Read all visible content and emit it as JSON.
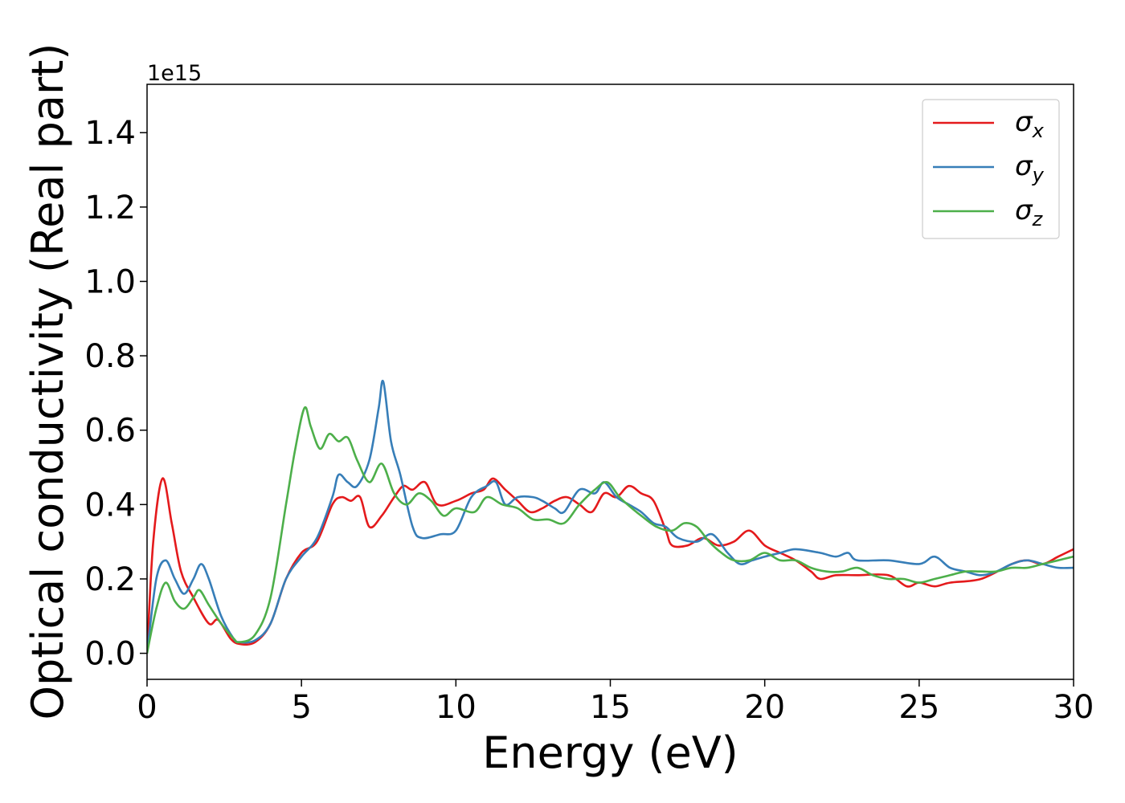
{
  "chart_data": {
    "type": "line",
    "title": "",
    "xlabel": "Energy (eV)",
    "ylabel": "Optical conductivity (Real part)",
    "y_offset_label": "1e15",
    "xlim": [
      0,
      30
    ],
    "ylim": [
      -0.07,
      1.53
    ],
    "x_ticks": [
      0,
      5,
      10,
      15,
      20,
      25,
      30
    ],
    "x_tick_labels": [
      "0",
      "5",
      "10",
      "15",
      "20",
      "25",
      "30"
    ],
    "y_ticks": [
      0.0,
      0.2,
      0.4,
      0.6,
      0.8,
      1.0,
      1.2,
      1.4
    ],
    "y_tick_labels": [
      "0.0",
      "0.2",
      "0.4",
      "0.6",
      "0.8",
      "1.0",
      "1.2",
      "1.4"
    ],
    "grid": false,
    "legend_position": "top-right",
    "series": [
      {
        "name": "σx",
        "symbol": "σ",
        "subscript": "x",
        "color": "#e41a1c",
        "points": [
          [
            0,
            0.0
          ],
          [
            0.2,
            0.3
          ],
          [
            0.5,
            0.47
          ],
          [
            0.8,
            0.35
          ],
          [
            1.1,
            0.22
          ],
          [
            1.5,
            0.15
          ],
          [
            2.0,
            0.08
          ],
          [
            2.3,
            0.09
          ],
          [
            2.7,
            0.04
          ],
          [
            3.0,
            0.025
          ],
          [
            3.5,
            0.03
          ],
          [
            4.0,
            0.08
          ],
          [
            4.5,
            0.2
          ],
          [
            5.0,
            0.27
          ],
          [
            5.5,
            0.3
          ],
          [
            6.0,
            0.4
          ],
          [
            6.3,
            0.42
          ],
          [
            6.6,
            0.41
          ],
          [
            6.9,
            0.42
          ],
          [
            7.2,
            0.34
          ],
          [
            7.6,
            0.37
          ],
          [
            8.0,
            0.42
          ],
          [
            8.3,
            0.45
          ],
          [
            8.6,
            0.44
          ],
          [
            9.0,
            0.46
          ],
          [
            9.4,
            0.4
          ],
          [
            10.0,
            0.41
          ],
          [
            10.5,
            0.43
          ],
          [
            10.9,
            0.44
          ],
          [
            11.2,
            0.47
          ],
          [
            11.6,
            0.44
          ],
          [
            12.0,
            0.41
          ],
          [
            12.4,
            0.38
          ],
          [
            12.8,
            0.39
          ],
          [
            13.2,
            0.41
          ],
          [
            13.6,
            0.42
          ],
          [
            14.0,
            0.4
          ],
          [
            14.4,
            0.38
          ],
          [
            14.8,
            0.43
          ],
          [
            15.2,
            0.42
          ],
          [
            15.6,
            0.45
          ],
          [
            16.0,
            0.43
          ],
          [
            16.4,
            0.41
          ],
          [
            16.8,
            0.33
          ],
          [
            17.0,
            0.29
          ],
          [
            17.5,
            0.29
          ],
          [
            18.0,
            0.31
          ],
          [
            18.5,
            0.29
          ],
          [
            19.0,
            0.3
          ],
          [
            19.5,
            0.33
          ],
          [
            20.0,
            0.29
          ],
          [
            20.5,
            0.27
          ],
          [
            21.0,
            0.25
          ],
          [
            21.5,
            0.22
          ],
          [
            21.8,
            0.2
          ],
          [
            22.3,
            0.21
          ],
          [
            23.0,
            0.21
          ],
          [
            24.0,
            0.21
          ],
          [
            24.6,
            0.18
          ],
          [
            25.0,
            0.19
          ],
          [
            25.5,
            0.18
          ],
          [
            26.0,
            0.19
          ],
          [
            27.0,
            0.2
          ],
          [
            28.0,
            0.24
          ],
          [
            28.5,
            0.25
          ],
          [
            29.0,
            0.24
          ],
          [
            29.5,
            0.26
          ],
          [
            30.0,
            0.28
          ]
        ]
      },
      {
        "name": "σy",
        "symbol": "σ",
        "subscript": "y",
        "color": "#377eb8",
        "points": [
          [
            0,
            0.0
          ],
          [
            0.3,
            0.2
          ],
          [
            0.6,
            0.25
          ],
          [
            0.9,
            0.2
          ],
          [
            1.2,
            0.16
          ],
          [
            1.5,
            0.2
          ],
          [
            1.75,
            0.24
          ],
          [
            2.0,
            0.2
          ],
          [
            2.4,
            0.1
          ],
          [
            2.8,
            0.04
          ],
          [
            3.0,
            0.03
          ],
          [
            3.5,
            0.035
          ],
          [
            4.0,
            0.08
          ],
          [
            4.5,
            0.2
          ],
          [
            5.0,
            0.26
          ],
          [
            5.5,
            0.31
          ],
          [
            6.0,
            0.42
          ],
          [
            6.2,
            0.48
          ],
          [
            6.5,
            0.46
          ],
          [
            6.8,
            0.45
          ],
          [
            7.2,
            0.52
          ],
          [
            7.5,
            0.66
          ],
          [
            7.65,
            0.73
          ],
          [
            7.9,
            0.57
          ],
          [
            8.2,
            0.48
          ],
          [
            8.6,
            0.34
          ],
          [
            8.9,
            0.31
          ],
          [
            9.5,
            0.32
          ],
          [
            10.0,
            0.33
          ],
          [
            10.5,
            0.42
          ],
          [
            11.0,
            0.45
          ],
          [
            11.3,
            0.46
          ],
          [
            11.6,
            0.4
          ],
          [
            12.0,
            0.42
          ],
          [
            12.5,
            0.42
          ],
          [
            12.8,
            0.41
          ],
          [
            13.2,
            0.39
          ],
          [
            13.5,
            0.38
          ],
          [
            14.0,
            0.44
          ],
          [
            14.5,
            0.43
          ],
          [
            14.8,
            0.46
          ],
          [
            15.2,
            0.42
          ],
          [
            15.6,
            0.4
          ],
          [
            16.0,
            0.38
          ],
          [
            16.4,
            0.35
          ],
          [
            16.8,
            0.34
          ],
          [
            17.2,
            0.31
          ],
          [
            17.8,
            0.3
          ],
          [
            18.3,
            0.32
          ],
          [
            18.8,
            0.27
          ],
          [
            19.2,
            0.24
          ],
          [
            19.6,
            0.25
          ],
          [
            20.0,
            0.26
          ],
          [
            20.5,
            0.27
          ],
          [
            21.0,
            0.28
          ],
          [
            21.8,
            0.27
          ],
          [
            22.3,
            0.26
          ],
          [
            22.7,
            0.27
          ],
          [
            23.0,
            0.25
          ],
          [
            24.0,
            0.25
          ],
          [
            25.0,
            0.24
          ],
          [
            25.5,
            0.26
          ],
          [
            26.0,
            0.23
          ],
          [
            26.5,
            0.22
          ],
          [
            27.0,
            0.21
          ],
          [
            27.5,
            0.22
          ],
          [
            28.0,
            0.24
          ],
          [
            28.5,
            0.25
          ],
          [
            29.0,
            0.24
          ],
          [
            29.5,
            0.23
          ],
          [
            30.0,
            0.23
          ]
        ]
      },
      {
        "name": "σz",
        "symbol": "σ",
        "subscript": "z",
        "color": "#4daf4a",
        "points": [
          [
            0,
            0.0
          ],
          [
            0.3,
            0.12
          ],
          [
            0.6,
            0.19
          ],
          [
            0.9,
            0.14
          ],
          [
            1.2,
            0.12
          ],
          [
            1.5,
            0.15
          ],
          [
            1.7,
            0.17
          ],
          [
            2.0,
            0.13
          ],
          [
            2.4,
            0.08
          ],
          [
            2.8,
            0.04
          ],
          [
            3.0,
            0.03
          ],
          [
            3.5,
            0.05
          ],
          [
            4.0,
            0.15
          ],
          [
            4.5,
            0.4
          ],
          [
            4.8,
            0.55
          ],
          [
            5.1,
            0.66
          ],
          [
            5.3,
            0.61
          ],
          [
            5.6,
            0.55
          ],
          [
            5.9,
            0.59
          ],
          [
            6.2,
            0.57
          ],
          [
            6.5,
            0.58
          ],
          [
            6.8,
            0.52
          ],
          [
            7.2,
            0.46
          ],
          [
            7.6,
            0.51
          ],
          [
            8.0,
            0.43
          ],
          [
            8.4,
            0.4
          ],
          [
            8.8,
            0.43
          ],
          [
            9.2,
            0.41
          ],
          [
            9.6,
            0.37
          ],
          [
            10.0,
            0.39
          ],
          [
            10.6,
            0.38
          ],
          [
            11.0,
            0.42
          ],
          [
            11.5,
            0.4
          ],
          [
            12.0,
            0.39
          ],
          [
            12.5,
            0.36
          ],
          [
            13.0,
            0.36
          ],
          [
            13.5,
            0.35
          ],
          [
            14.0,
            0.4
          ],
          [
            14.5,
            0.44
          ],
          [
            14.9,
            0.46
          ],
          [
            15.3,
            0.42
          ],
          [
            15.7,
            0.39
          ],
          [
            16.0,
            0.37
          ],
          [
            16.5,
            0.34
          ],
          [
            17.0,
            0.33
          ],
          [
            17.4,
            0.35
          ],
          [
            17.8,
            0.34
          ],
          [
            18.2,
            0.3
          ],
          [
            18.6,
            0.27
          ],
          [
            19.0,
            0.25
          ],
          [
            19.5,
            0.25
          ],
          [
            20.0,
            0.27
          ],
          [
            20.5,
            0.25
          ],
          [
            21.0,
            0.25
          ],
          [
            21.5,
            0.23
          ],
          [
            22.0,
            0.22
          ],
          [
            22.5,
            0.22
          ],
          [
            23.0,
            0.23
          ],
          [
            23.5,
            0.21
          ],
          [
            24.0,
            0.2
          ],
          [
            24.5,
            0.2
          ],
          [
            25.0,
            0.19
          ],
          [
            25.5,
            0.2
          ],
          [
            26.0,
            0.21
          ],
          [
            26.5,
            0.22
          ],
          [
            27.0,
            0.22
          ],
          [
            27.5,
            0.22
          ],
          [
            28.0,
            0.23
          ],
          [
            28.5,
            0.23
          ],
          [
            29.0,
            0.24
          ],
          [
            29.5,
            0.25
          ],
          [
            30.0,
            0.26
          ]
        ]
      }
    ]
  }
}
